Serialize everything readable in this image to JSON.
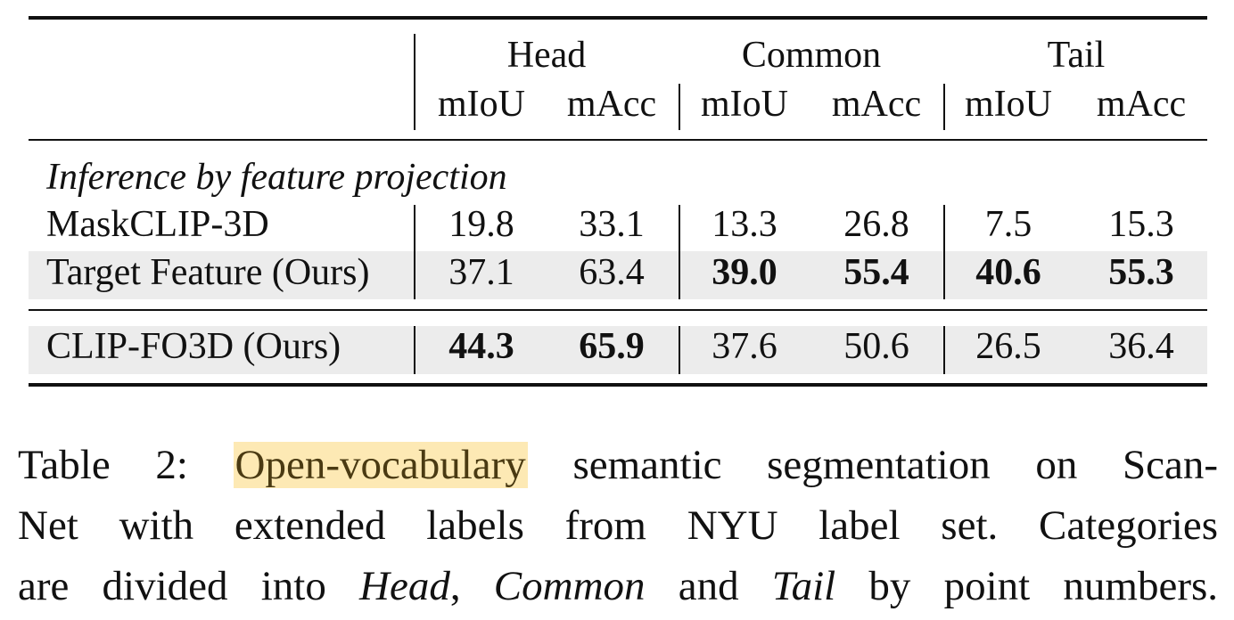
{
  "table": {
    "groups": [
      "Head",
      "Common",
      "Tail"
    ],
    "metrics": [
      "mIoU",
      "mAcc",
      "mIoU",
      "mAcc",
      "mIoU",
      "mAcc"
    ],
    "section_label": "Inference by feature projection",
    "rows": [
      {
        "name": "MaskCLIP-3D",
        "values": [
          "19.8",
          "33.1",
          "13.3",
          "26.8",
          "7.5",
          "15.3"
        ],
        "bold": [
          false,
          false,
          false,
          false,
          false,
          false
        ]
      },
      {
        "name": "Target Feature (Ours)",
        "values": [
          "37.1",
          "63.4",
          "39.0",
          "55.4",
          "40.6",
          "55.3"
        ],
        "bold": [
          false,
          false,
          true,
          true,
          true,
          true
        ]
      },
      {
        "name": "CLIP-FO3D (Ours)",
        "values": [
          "44.3",
          "65.9",
          "37.6",
          "50.6",
          "26.5",
          "36.4"
        ],
        "bold": [
          true,
          true,
          false,
          false,
          false,
          false
        ]
      }
    ]
  },
  "caption": {
    "label": "Table 2:",
    "highlight": "Open-vocabulary",
    "line1_rest": "semantic segmentation on Scan-",
    "line2": "Net with extended labels from NYU label set.  Categories",
    "line3_a": "are divided into",
    "line3_head": "Head",
    "line3_comma": ",",
    "line3_common": "Common",
    "line3_and": "and",
    "line3_tail": "Tail",
    "line3_end": "by point numbers."
  },
  "colors": {
    "highlight_bg": "#fde9b4",
    "row_shade": "#ececec"
  }
}
